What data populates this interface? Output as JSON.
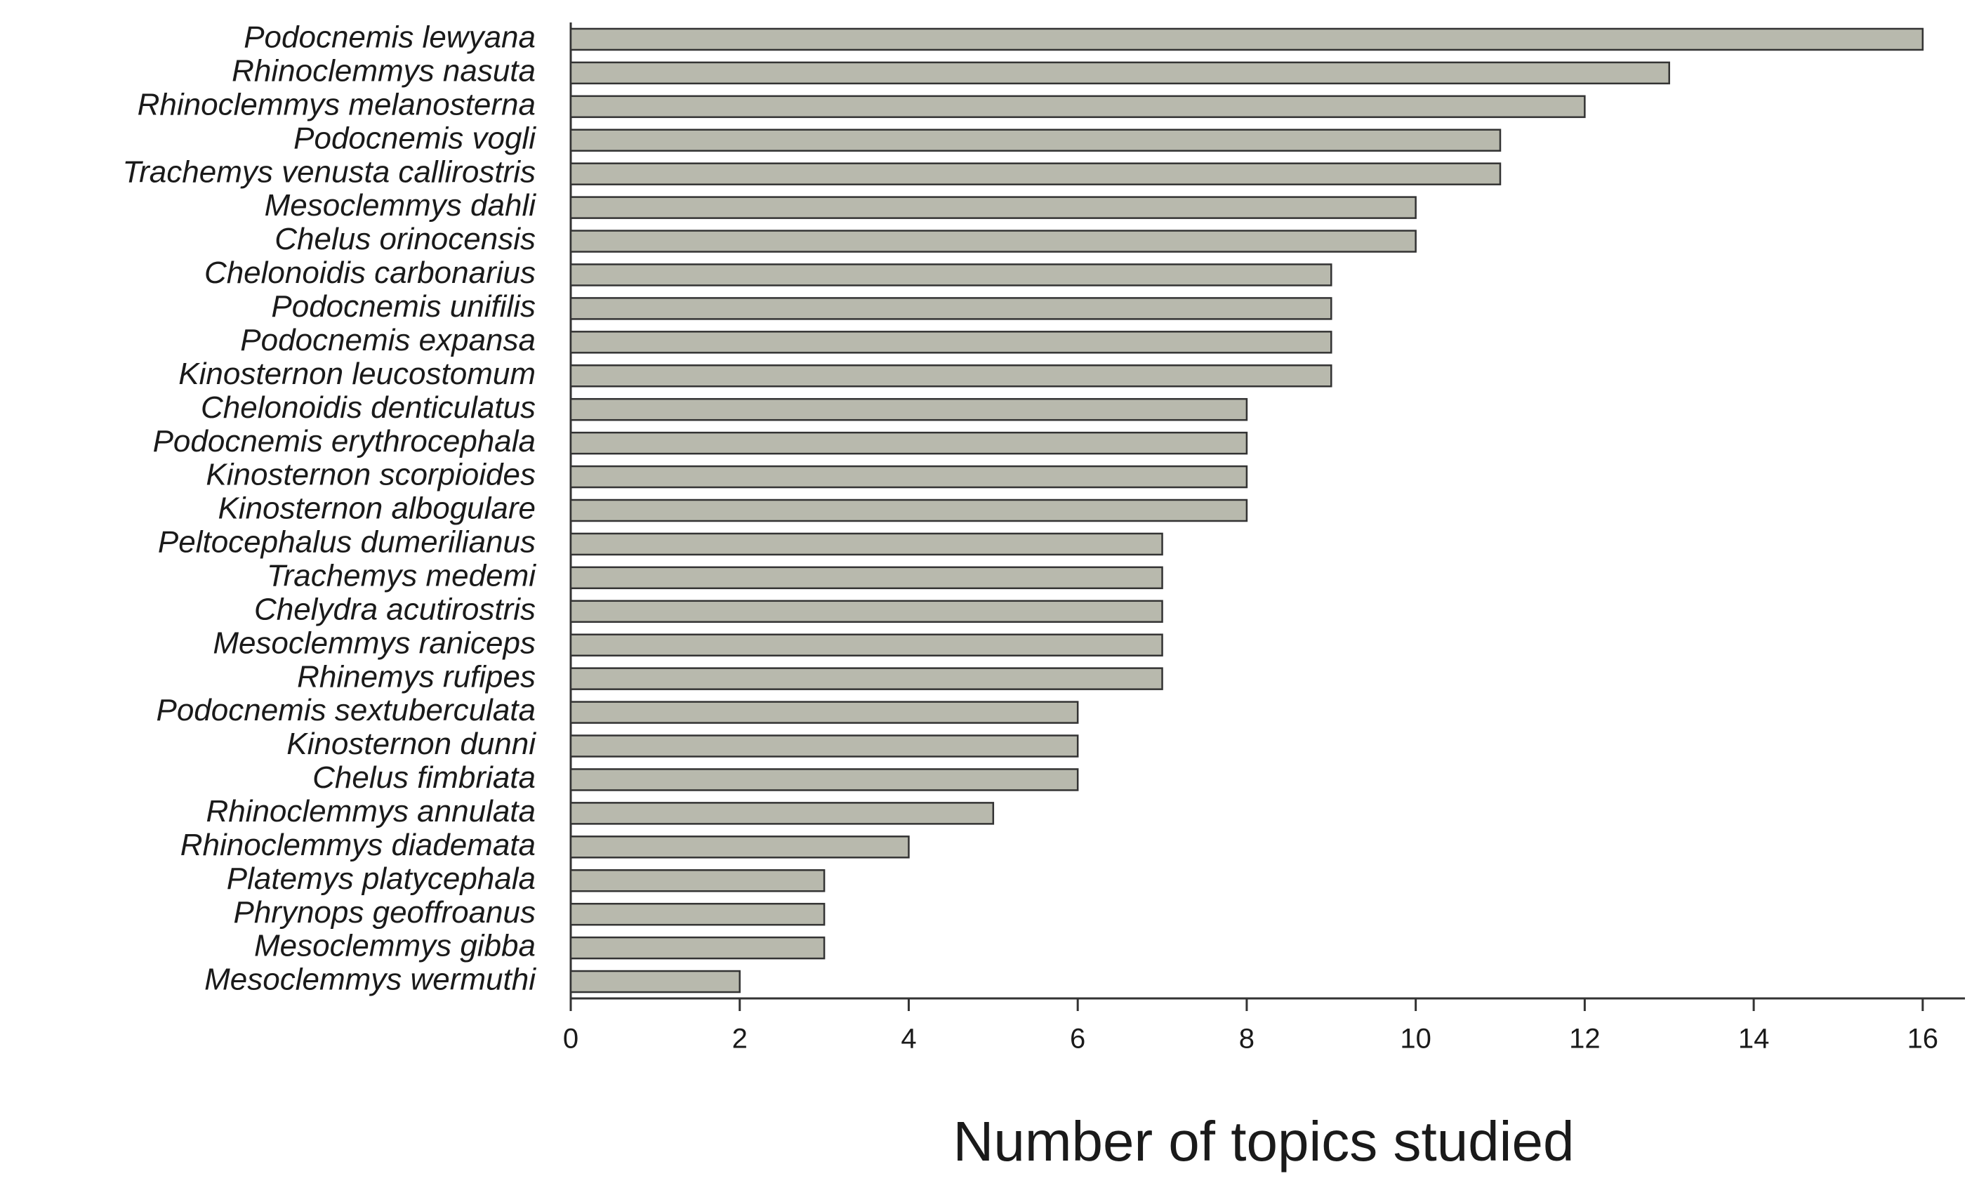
{
  "chart_data": {
    "type": "bar",
    "orientation": "horizontal",
    "x_label": "Number of topics studied",
    "categories": [
      "Podocnemis lewyana",
      "Rhinoclemmys nasuta",
      "Rhinoclemmys melanosterna",
      "Podocnemis vogli",
      "Trachemys venusta callirostris",
      "Mesoclemmys dahli",
      "Chelus orinocensis",
      "Chelonoidis carbonarius",
      "Podocnemis unifilis",
      "Podocnemis expansa",
      "Kinosternon leucostomum",
      "Chelonoidis denticulatus",
      "Podocnemis erythrocephala",
      "Kinosternon scorpioides",
      "Kinosternon albogulare",
      "Peltocephalus dumerilianus",
      "Trachemys medemi",
      "Chelydra acutirostris",
      "Mesoclemmys raniceps",
      "Rhinemys rufipes",
      "Podocnemis sextuberculata",
      "Kinosternon dunni",
      "Chelus fimbriata",
      "Rhinoclemmys annulata",
      "Rhinoclemmys diademata",
      "Platemys platycephala",
      "Phrynops geoffroanus",
      "Mesoclemmys gibba",
      "Mesoclemmys wermuthi"
    ],
    "values": [
      16,
      13,
      12,
      11,
      11,
      10,
      10,
      9,
      9,
      9,
      9,
      8,
      8,
      8,
      8,
      7,
      7,
      7,
      7,
      7,
      6,
      6,
      6,
      5,
      4,
      3,
      3,
      3,
      2
    ],
    "color": "#b8b9ad",
    "xlim": [
      0,
      16.5
    ],
    "xticks": [
      0,
      2,
      4,
      6,
      8,
      10,
      12,
      14,
      16
    ],
    "grid": false
  }
}
